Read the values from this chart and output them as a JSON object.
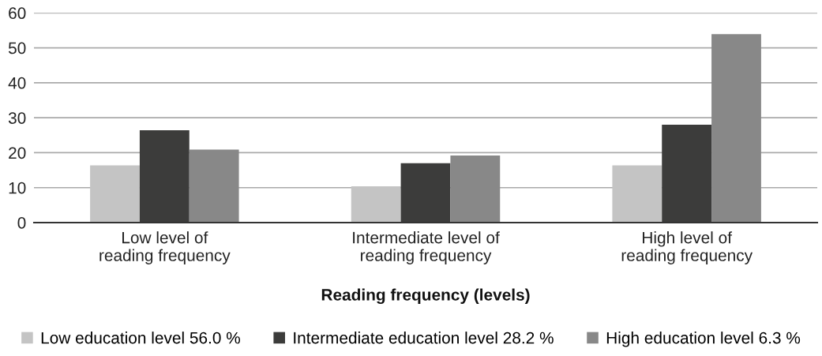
{
  "chart_data": {
    "type": "bar",
    "categories": [
      "Low level of\nreading frequency",
      "Intermediate level of\nreading frequency",
      "High level of\nreading frequency"
    ],
    "series": [
      {
        "name": "Low education level 56.0 %",
        "color": "#c4c4c4",
        "values": [
          16.4,
          10.4,
          16.4
        ]
      },
      {
        "name": "Intermediate education level 28.2 %",
        "color": "#3c3c3b",
        "values": [
          26.4,
          17.0,
          28.0
        ]
      },
      {
        "name": "High education level 6.3 %",
        "color": "#888888",
        "values": [
          20.9,
          19.2,
          53.9
        ]
      }
    ],
    "xlabel": "Reading frequency (levels)",
    "ylim": [
      0,
      60
    ],
    "yticks": [
      0,
      10,
      20,
      30,
      40,
      50,
      60
    ],
    "grid": "y",
    "legend": "bottom"
  }
}
